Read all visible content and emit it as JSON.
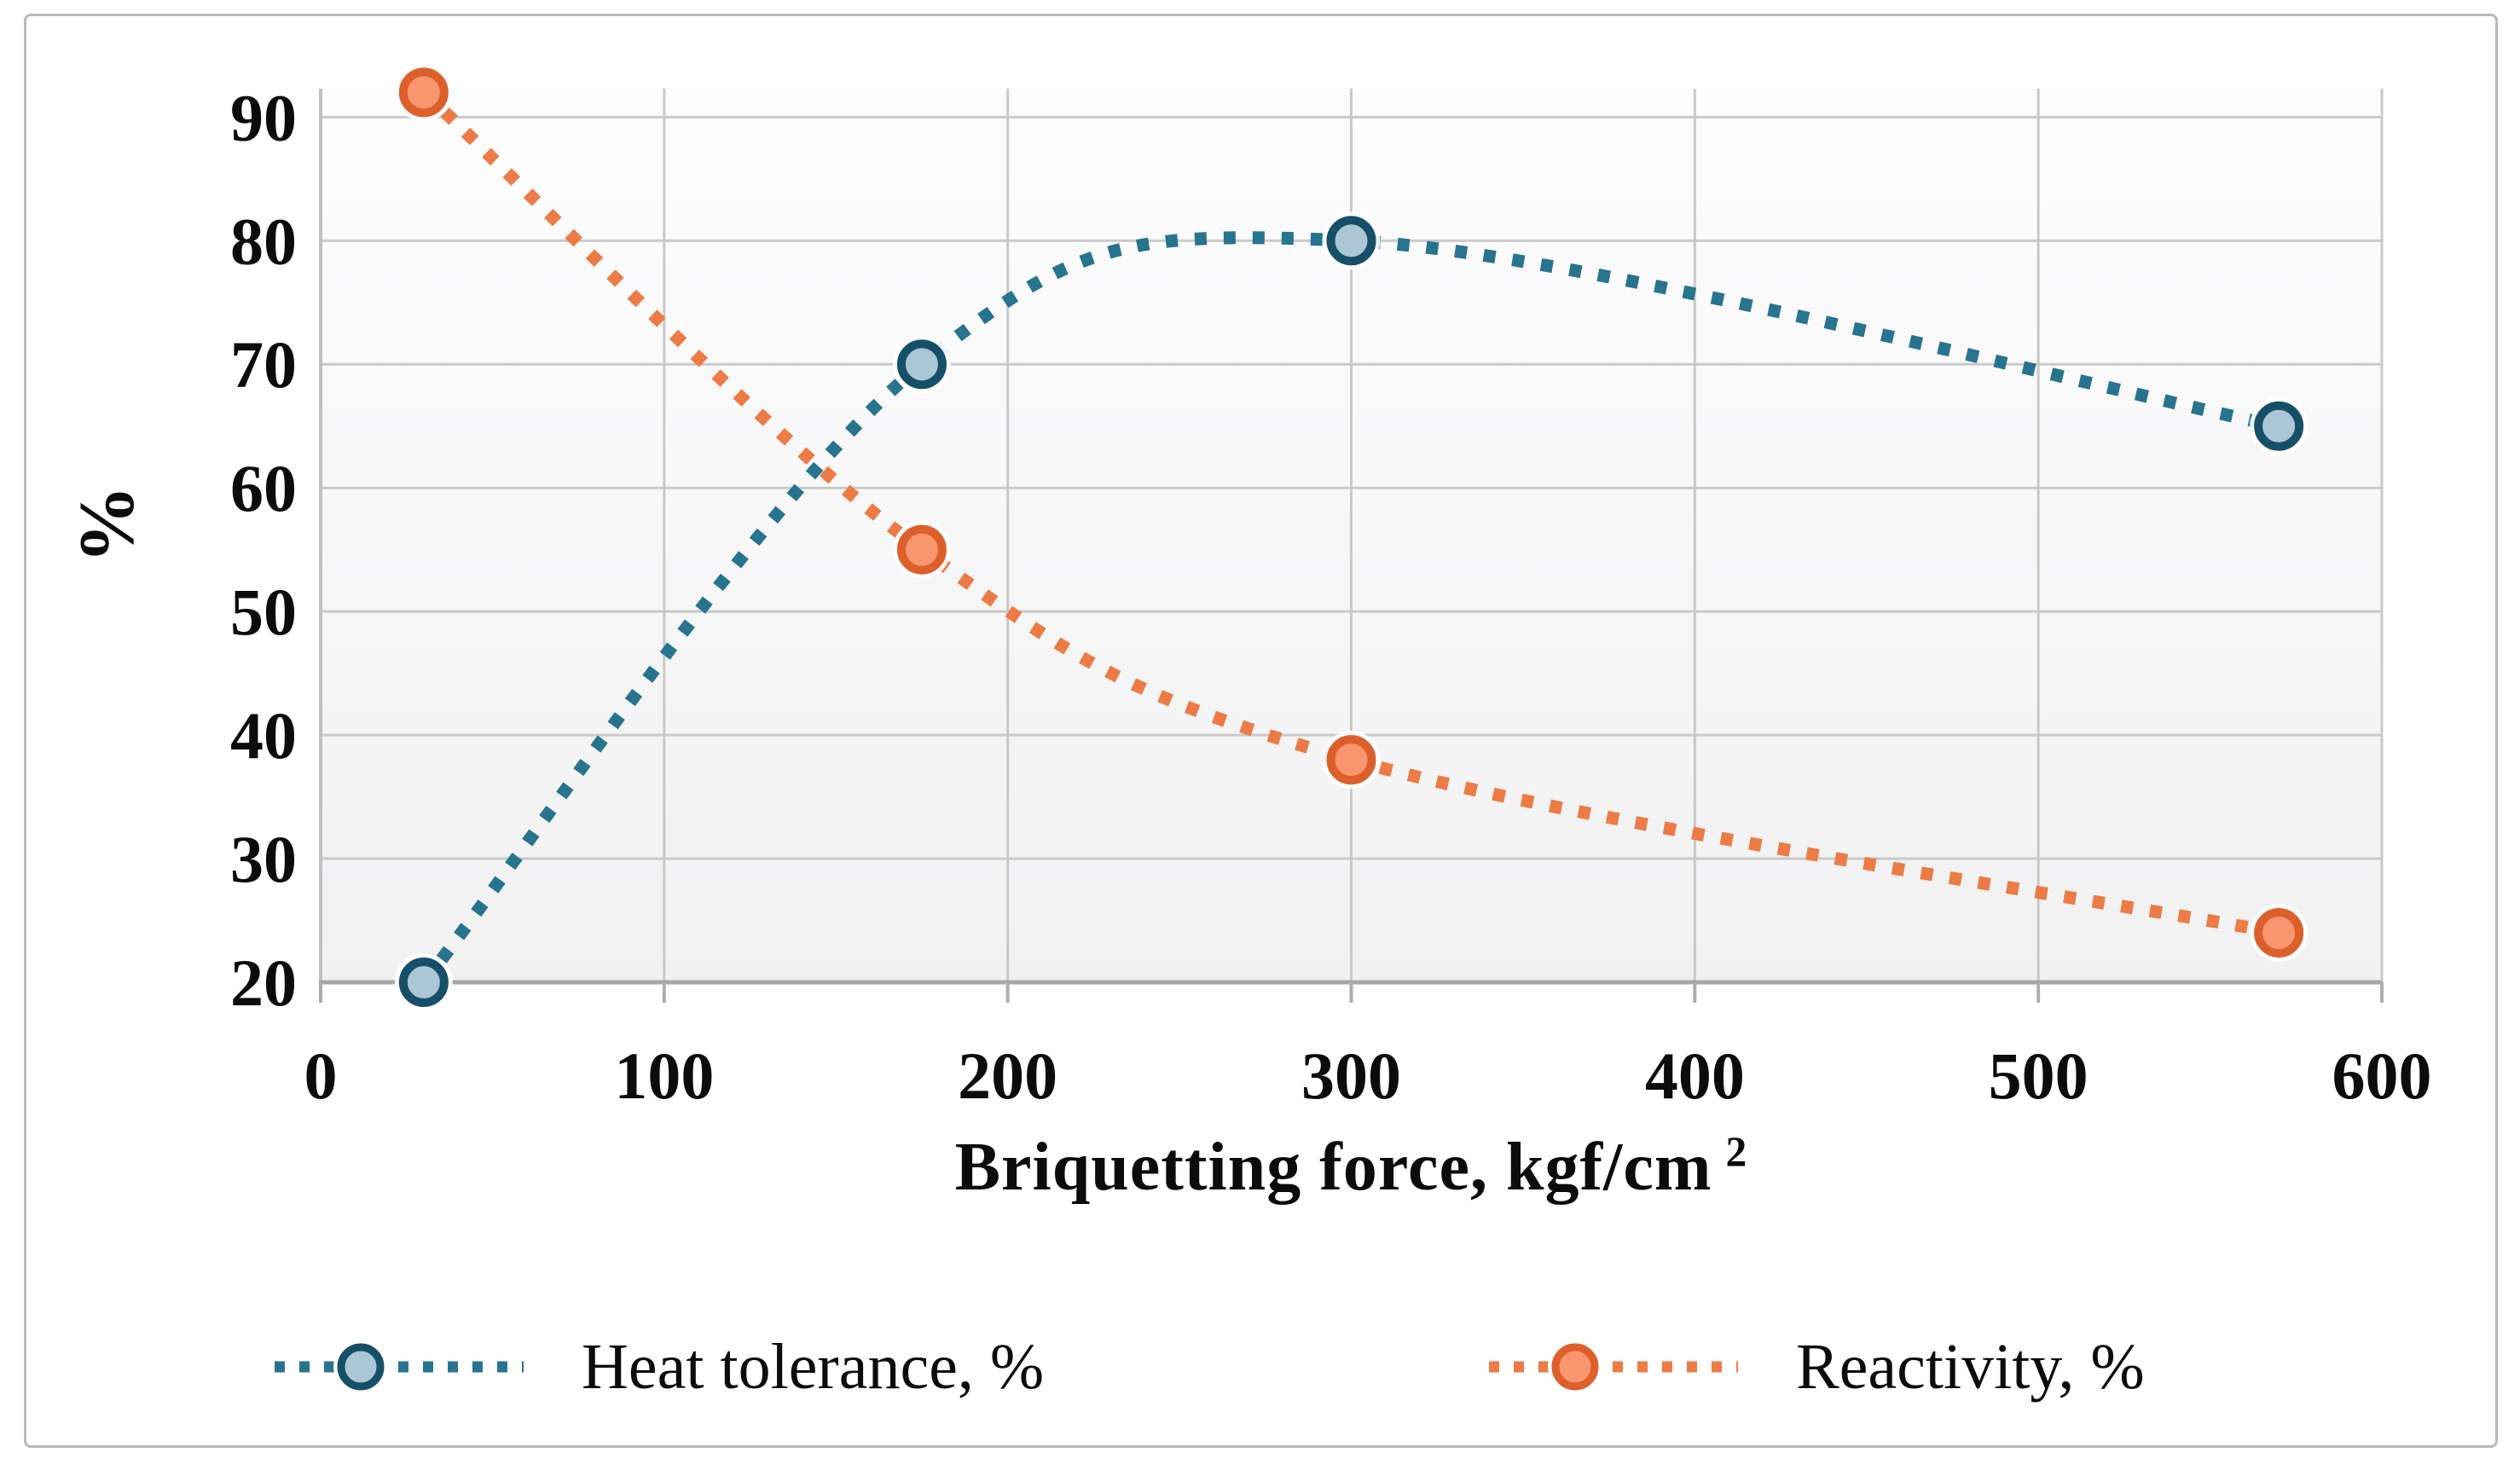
{
  "figure": {
    "x_axis_title": "Briquetting force, kgf/cm",
    "x_axis_title_sup": "2",
    "y_axis_title": "%"
  },
  "chart_data": {
    "type": "line",
    "x": [
      30,
      175,
      300,
      570
    ],
    "series": [
      {
        "name": "Heat tolerance, %",
        "values": [
          20,
          70,
          80,
          65
        ],
        "line_color": "#27748f",
        "marker_fill": "#abc7d5",
        "marker_stroke": "#164f68"
      },
      {
        "name": "Reactivity, %",
        "values": [
          92,
          55,
          38,
          24
        ],
        "line_color": "#ec7b45",
        "marker_fill": "#f9966f",
        "marker_stroke": "#dd5f2b"
      }
    ],
    "title": "",
    "xlabel": "Briquetting force, kgf/cm",
    "xlabel_sup": "2",
    "ylabel": "%",
    "xlim": [
      0,
      600
    ],
    "ylim": [
      20,
      92.3
    ],
    "xticks": [
      0,
      100,
      200,
      300,
      400,
      500,
      600
    ],
    "yticks": [
      20,
      30,
      40,
      50,
      60,
      70,
      80,
      90
    ],
    "grid": true,
    "line_style": "dotted",
    "marker_style": "circle",
    "legend_position": "bottom",
    "style": {
      "grid_color": "#c9c9c9",
      "x_axis_color": "#a6a6a6",
      "y_axis_color": "#c0c0c0",
      "tick_color": "#adadad",
      "plot_bg_top": "#fdfdfe",
      "plot_bg_bottom": "#f1f1f2",
      "text_color": "#0c0c0c",
      "frame_border": "#b9b9b9",
      "halo_color": "#ffffff"
    }
  }
}
